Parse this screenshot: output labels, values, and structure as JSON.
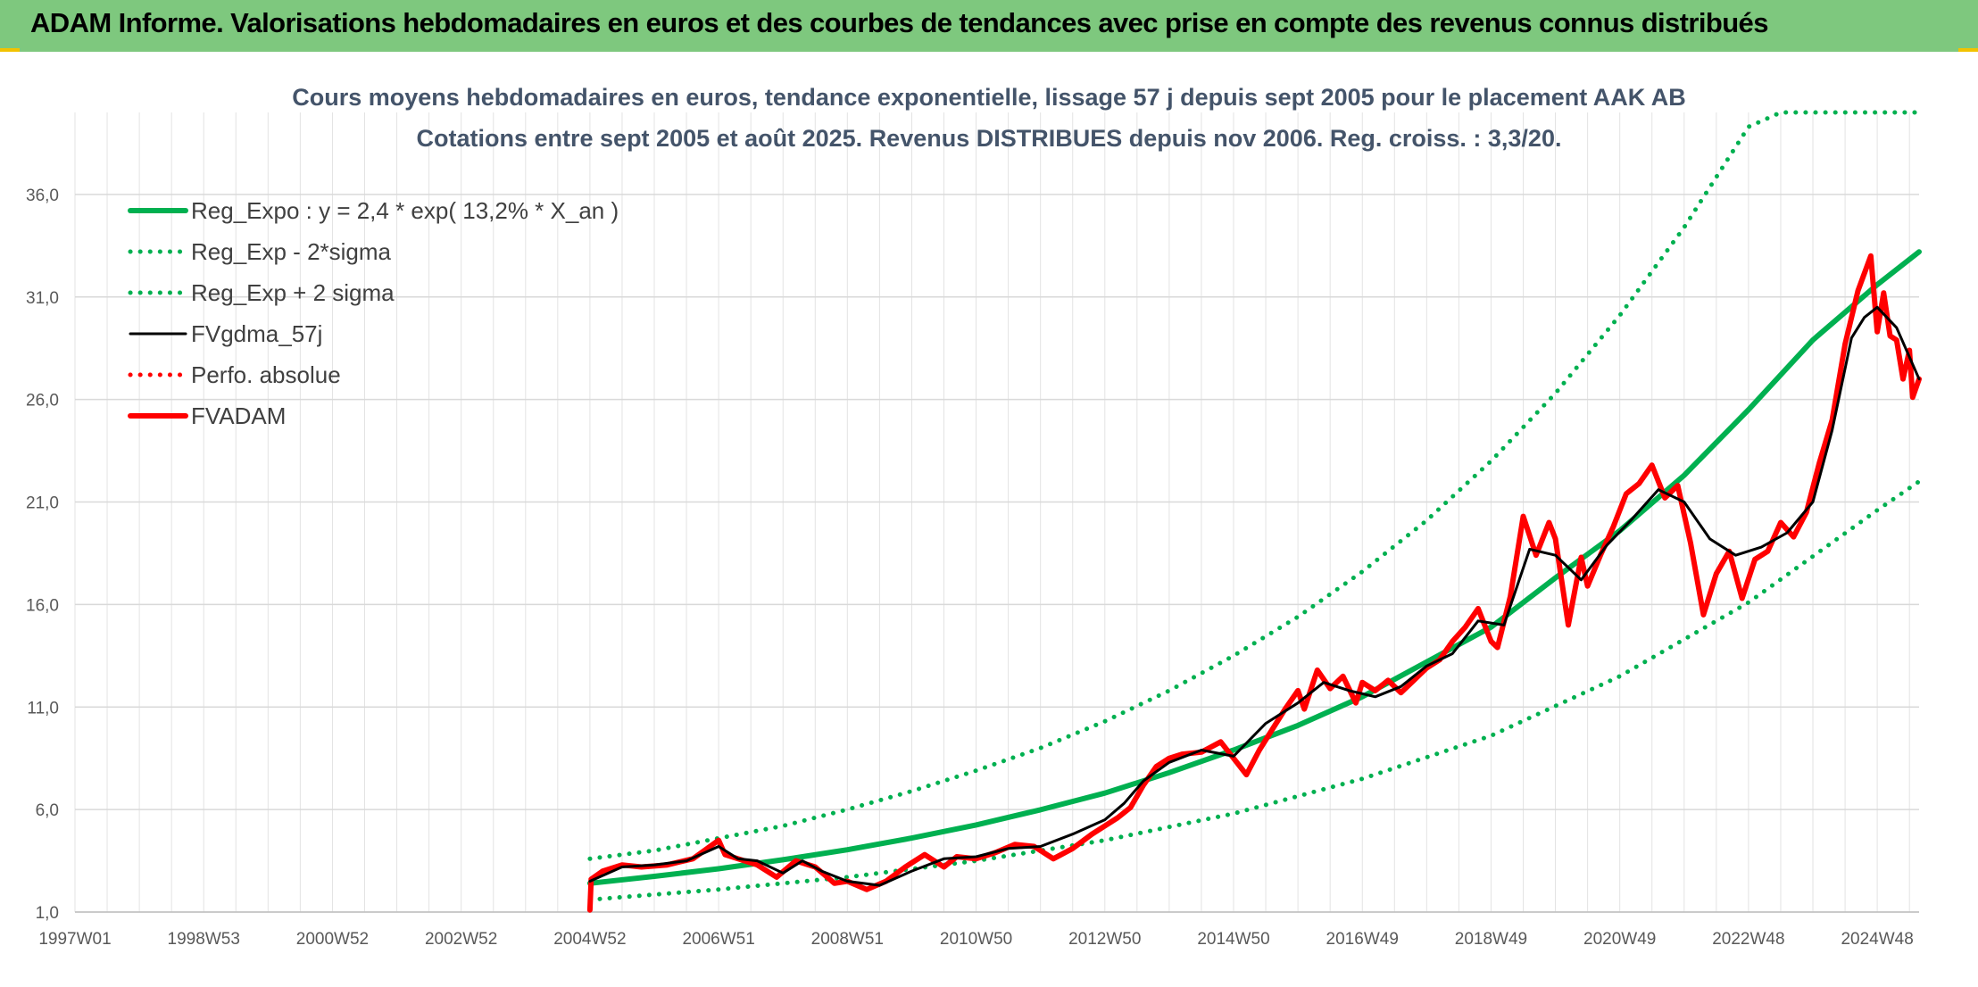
{
  "banner": {
    "title": "ADAM Informe. Valorisations hebdomadaires en euros et des courbes de tendances avec prise en compte des revenus connus distribués"
  },
  "colors": {
    "banner_bg": "#7ec87e",
    "reg_green": "#00b050",
    "price_red": "#ff0000",
    "smooth_black": "#000000"
  },
  "chart_data": {
    "type": "line",
    "title_line1": "Cours moyens hebdomadaires en euros, tendance exponentielle, lissage 57 j depuis sept 2005 pour le placement AAK AB",
    "title_line2": "Cotations entre sept 2005 et août 2025. Revenus DISTRIBUES depuis nov 2006. Reg. croiss. : 3,3/20.",
    "xlabel": "",
    "ylabel": "",
    "x_unit": "years since 1997W01",
    "x_range": [
      0,
      28.65
    ],
    "ylim": [
      1,
      40
    ],
    "grid": true,
    "legend_position": "top-left",
    "x_ticks": [
      {
        "label": "1997W01",
        "x": 0
      },
      {
        "label": "1998W53",
        "x": 2
      },
      {
        "label": "2000W52",
        "x": 4
      },
      {
        "label": "2002W52",
        "x": 6
      },
      {
        "label": "2004W52",
        "x": 8
      },
      {
        "label": "2006W51",
        "x": 10
      },
      {
        "label": "2008W51",
        "x": 12
      },
      {
        "label": "2010W50",
        "x": 14
      },
      {
        "label": "2012W50",
        "x": 16
      },
      {
        "label": "2014W50",
        "x": 18
      },
      {
        "label": "2016W49",
        "x": 20
      },
      {
        "label": "2018W49",
        "x": 22
      },
      {
        "label": "2020W49",
        "x": 24
      },
      {
        "label": "2022W48",
        "x": 26
      },
      {
        "label": "2024W48",
        "x": 28
      }
    ],
    "y_ticks": [
      {
        "label": "1,0",
        "y": 1
      },
      {
        "label": "6,0",
        "y": 6
      },
      {
        "label": "11,0",
        "y": 11
      },
      {
        "label": "16,0",
        "y": 16
      },
      {
        "label": "21,0",
        "y": 21
      },
      {
        "label": "26,0",
        "y": 26
      },
      {
        "label": "31,0",
        "y": 31
      },
      {
        "label": "36,0",
        "y": 36
      }
    ],
    "series": [
      {
        "name": "Reg_Expo : y = 2,4 * exp( 13,2% *  X_an )",
        "style": "solid-thick",
        "color": "#00b050",
        "x": [
          8.0,
          9,
          10,
          11,
          12,
          13,
          14,
          15,
          16,
          17,
          18,
          19,
          20,
          21,
          22,
          23,
          24,
          25,
          26,
          27,
          28,
          28.65
        ],
        "y": [
          2.4,
          2.74,
          3.11,
          3.55,
          4.04,
          4.61,
          5.25,
          5.99,
          6.8,
          7.8,
          8.9,
          10.1,
          11.5,
          13.2,
          14.9,
          17.3,
          19.6,
          22.3,
          25.5,
          28.9,
          31.6,
          33.2
        ]
      },
      {
        "name": "Reg_Exp - 2*sigma",
        "style": "dotted",
        "color": "#00b050",
        "x": [
          8.0,
          10,
          12,
          14,
          16,
          18,
          20,
          22,
          24,
          26,
          28,
          28.65
        ],
        "y": [
          1.6,
          2.1,
          2.7,
          3.5,
          4.5,
          5.8,
          7.5,
          9.6,
          12.5,
          16.1,
          20.6,
          22.0
        ]
      },
      {
        "name": "Reg_Exp + 2 sigma",
        "style": "dotted",
        "color": "#00b050",
        "x": [
          8.0,
          9,
          10,
          11,
          12,
          13,
          14,
          15,
          16,
          17,
          18,
          19,
          20,
          21,
          22,
          23,
          24,
          25,
          26,
          26.5,
          27,
          28,
          28.65
        ],
        "y": [
          3.6,
          4.0,
          4.6,
          5.2,
          6.0,
          6.9,
          7.9,
          9.0,
          10.3,
          11.8,
          13.5,
          15.4,
          17.6,
          20.1,
          23.0,
          26.3,
          30.1,
          34.4,
          39.3,
          40,
          40,
          40,
          40
        ]
      },
      {
        "name": "FVgdma_57j",
        "style": "solid",
        "color": "#000000",
        "x": [
          8.0,
          8.5,
          9.0,
          9.5,
          10.0,
          10.3,
          10.6,
          11.0,
          11.3,
          11.6,
          12.0,
          12.5,
          13.0,
          13.5,
          14.0,
          14.5,
          15.0,
          15.5,
          16.0,
          16.3,
          16.6,
          17.0,
          17.5,
          18.0,
          18.5,
          19.0,
          19.4,
          19.8,
          20.2,
          20.6,
          21.0,
          21.4,
          21.8,
          22.2,
          22.6,
          23.0,
          23.4,
          23.8,
          24.2,
          24.6,
          25.0,
          25.4,
          25.8,
          26.2,
          26.6,
          27.0,
          27.3,
          27.6,
          27.8,
          28.0,
          28.3,
          28.65
        ],
        "y": [
          2.5,
          3.2,
          3.3,
          3.5,
          4.2,
          3.6,
          3.5,
          2.9,
          3.5,
          3.0,
          2.5,
          2.3,
          3.0,
          3.6,
          3.7,
          4.1,
          4.2,
          4.8,
          5.5,
          6.3,
          7.4,
          8.3,
          8.9,
          8.6,
          10.2,
          11.2,
          12.2,
          11.8,
          11.5,
          12.0,
          13.0,
          13.6,
          15.2,
          15.0,
          18.7,
          18.4,
          17.2,
          18.9,
          20.2,
          21.6,
          21.0,
          19.2,
          18.4,
          18.8,
          19.5,
          21.0,
          24.5,
          29.0,
          30.0,
          30.5,
          29.5,
          27.0
        ]
      },
      {
        "name": "Perfo. absolue",
        "style": "dotted",
        "color": "#ff0000",
        "x": [],
        "y": []
      },
      {
        "name": "FVADAM",
        "style": "solid-thick",
        "color": "#ff0000",
        "x": [
          8.0,
          8.02,
          8.2,
          8.5,
          8.8,
          9.2,
          9.6,
          10.0,
          10.1,
          10.3,
          10.6,
          10.9,
          11.2,
          11.5,
          11.8,
          12.0,
          12.3,
          12.6,
          12.9,
          13.2,
          13.5,
          13.7,
          14.0,
          14.3,
          14.6,
          14.9,
          15.2,
          15.5,
          15.8,
          16.0,
          16.2,
          16.4,
          16.6,
          16.8,
          17.0,
          17.2,
          17.5,
          17.8,
          18.0,
          18.2,
          18.4,
          18.6,
          18.8,
          19.0,
          19.1,
          19.3,
          19.5,
          19.7,
          19.9,
          20.0,
          20.2,
          20.4,
          20.6,
          20.8,
          21.0,
          21.2,
          21.4,
          21.6,
          21.8,
          22.0,
          22.1,
          22.3,
          22.5,
          22.7,
          22.9,
          23.0,
          23.2,
          23.4,
          23.5,
          23.7,
          23.9,
          24.1,
          24.3,
          24.5,
          24.7,
          24.9,
          25.1,
          25.3,
          25.5,
          25.7,
          25.9,
          26.1,
          26.3,
          26.5,
          26.7,
          26.9,
          27.1,
          27.3,
          27.5,
          27.7,
          27.9,
          28.0,
          28.1,
          28.2,
          28.3,
          28.4,
          28.5,
          28.55,
          28.65
        ],
        "y": [
          1.1,
          2.6,
          3.0,
          3.3,
          3.2,
          3.3,
          3.6,
          4.5,
          3.8,
          3.6,
          3.3,
          2.7,
          3.5,
          3.2,
          2.4,
          2.5,
          2.1,
          2.5,
          3.2,
          3.8,
          3.2,
          3.7,
          3.6,
          3.9,
          4.3,
          4.2,
          3.6,
          4.1,
          4.8,
          5.2,
          5.6,
          6.1,
          7.2,
          8.1,
          8.5,
          8.7,
          8.8,
          9.3,
          8.5,
          7.7,
          8.9,
          9.9,
          10.9,
          11.8,
          10.9,
          12.8,
          11.9,
          12.5,
          11.2,
          12.2,
          11.8,
          12.3,
          11.7,
          12.3,
          12.9,
          13.3,
          14.2,
          14.9,
          15.8,
          14.2,
          13.9,
          16.4,
          20.3,
          18.4,
          20.0,
          19.2,
          15.0,
          18.3,
          16.9,
          18.4,
          19.8,
          21.4,
          21.9,
          22.8,
          21.2,
          21.8,
          19.0,
          15.5,
          17.5,
          18.6,
          16.3,
          18.2,
          18.6,
          20.0,
          19.3,
          20.5,
          22.9,
          25.0,
          28.7,
          31.3,
          33.0,
          29.3,
          31.2,
          29.1,
          28.9,
          27.0,
          28.4,
          26.1,
          27.0
        ]
      }
    ]
  }
}
